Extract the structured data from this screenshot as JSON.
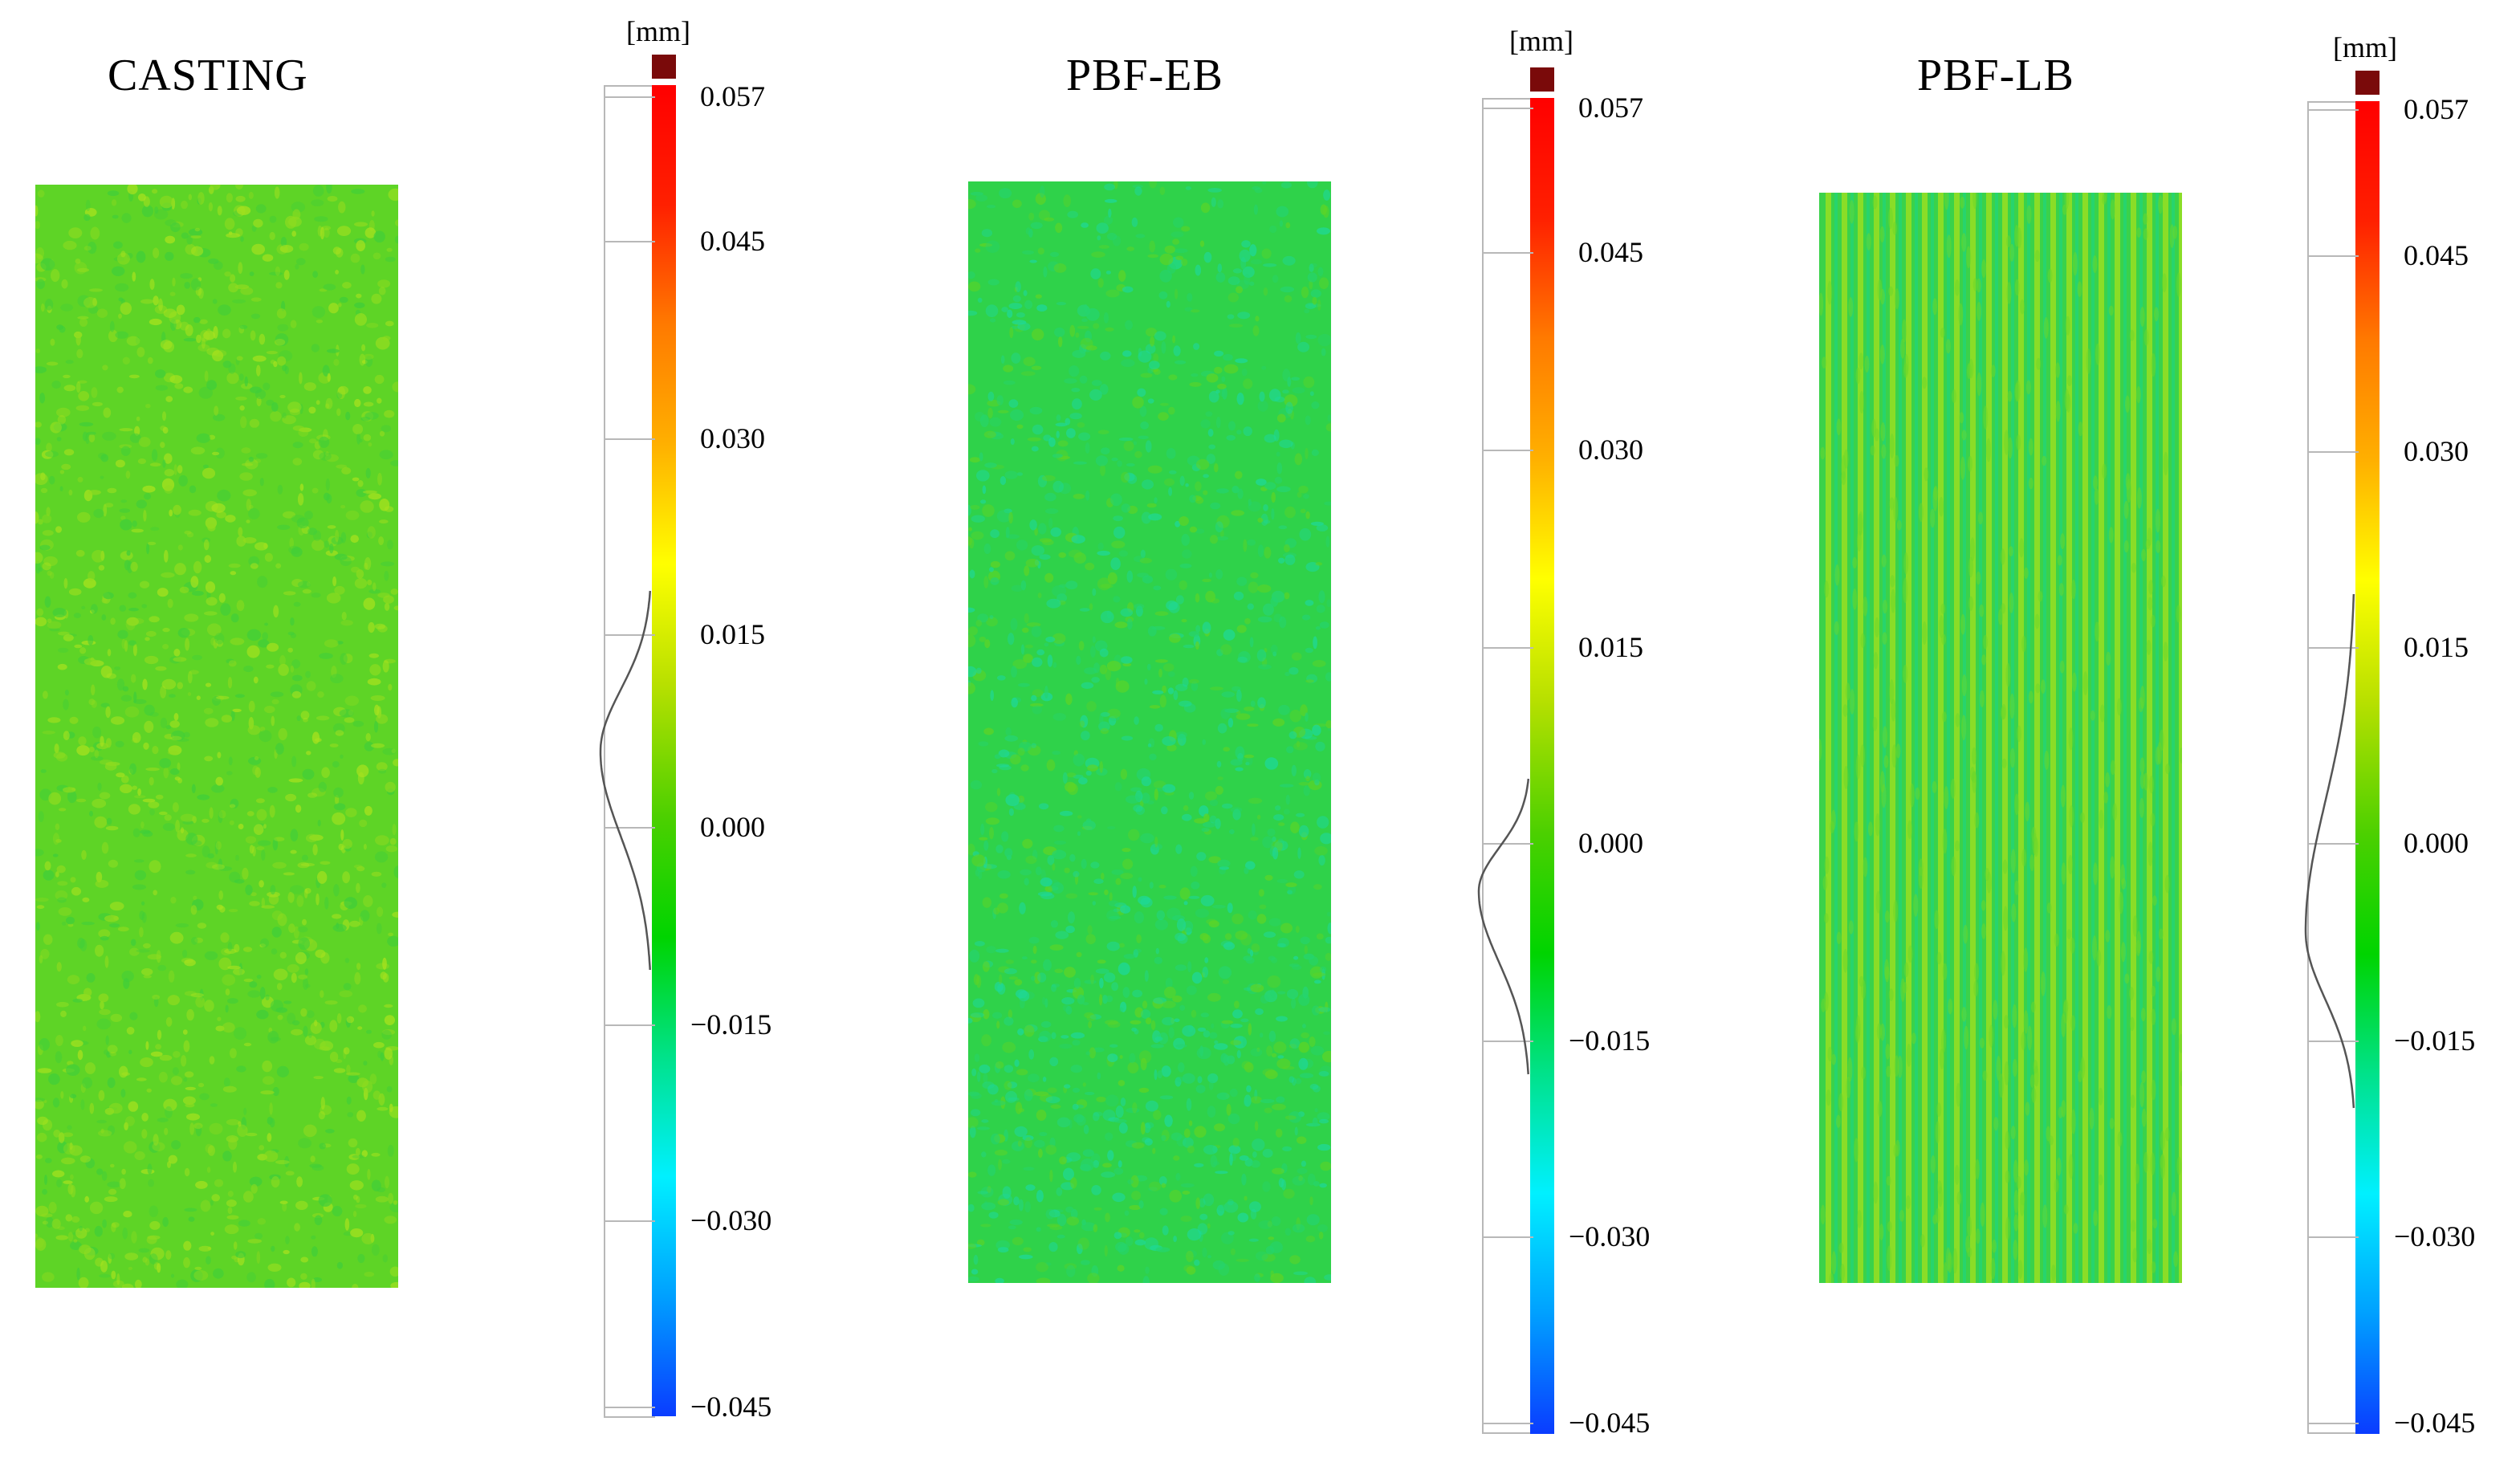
{
  "colors": {
    "scale": [
      "#0a3cff",
      "#00a0ff",
      "#00f0ff",
      "#00e28a",
      "#00d400",
      "#4cd000",
      "#b8e000",
      "#ffff00",
      "#ffb000",
      "#ff7a00",
      "#ff2000",
      "#ff0000"
    ],
    "over_range": "#7a0a0a"
  },
  "panels": [
    {
      "title": "CASTING",
      "unit": "[mm]",
      "ticks": [
        "0.057",
        "0.045",
        "0.030",
        "0.015",
        "0.000",
        "−0.015",
        "−0.030",
        "−0.045"
      ],
      "surface": {
        "base": "#5ed426",
        "variant": "speckle",
        "accents": [
          "#8fdb1f",
          "#3fce3a",
          "#a8e21e"
        ]
      }
    },
    {
      "title": "PBF-EB",
      "unit": "[mm]",
      "ticks": [
        "0.057",
        "0.045",
        "0.030",
        "0.015",
        "0.000",
        "−0.015",
        "−0.030",
        "−0.045"
      ],
      "surface": {
        "base": "#2fd24a",
        "variant": "speckle",
        "accents": [
          "#1ed89a",
          "#5ed426",
          "#25d46f"
        ]
      }
    },
    {
      "title": "PBF-LB",
      "unit": "[mm]",
      "ticks": [
        "0.057",
        "0.045",
        "0.030",
        "0.015",
        "0.000",
        "−0.015",
        "−0.030",
        "−0.045"
      ],
      "surface": {
        "base": "#3ad24a",
        "variant": "stripes",
        "accents": [
          "#a6e01c",
          "#18d68a",
          "#6cd82a"
        ]
      }
    }
  ]
}
